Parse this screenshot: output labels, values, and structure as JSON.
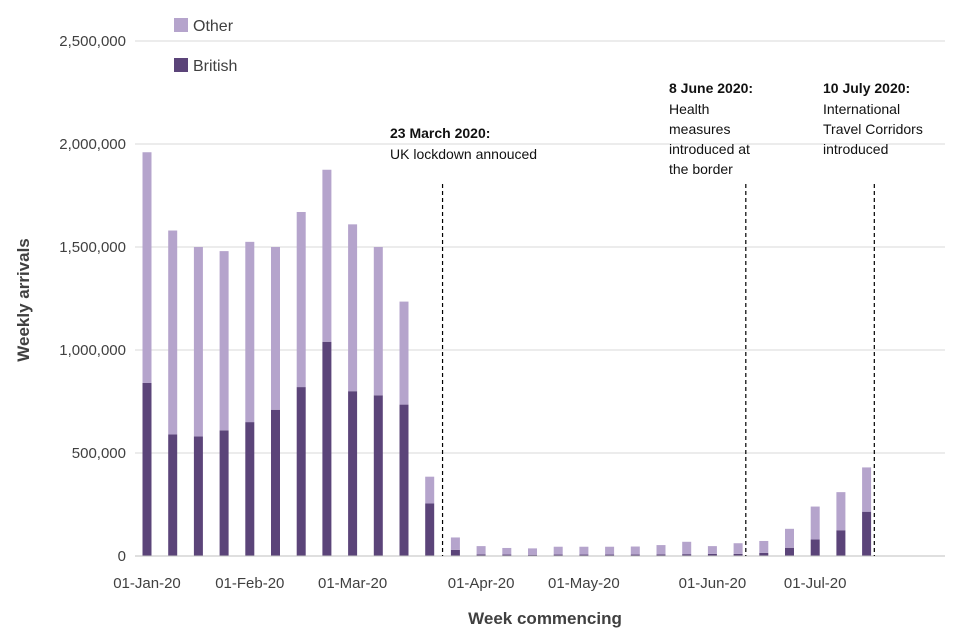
{
  "chart_data": {
    "type": "bar",
    "stacked": true,
    "xlabel": "Week commencing",
    "ylabel": "Weekly arrivals",
    "ylim": [
      0,
      2500000
    ],
    "y_ticks": [
      "0",
      "500,000",
      "1,000,000",
      "1,500,000",
      "2,000,000",
      "2,500,000"
    ],
    "grid": true,
    "legend_position": "top-left",
    "x_tick_labels": [
      {
        "label": "01-Jan-20",
        "week": 0
      },
      {
        "label": "01-Feb-20",
        "week": 4
      },
      {
        "label": "01-Mar-20",
        "week": 8
      },
      {
        "label": "01-Apr-20",
        "week": 13
      },
      {
        "label": "01-May-20",
        "week": 17
      },
      {
        "label": "01-Jun-20",
        "week": 22
      },
      {
        "label": "01-Jul-20",
        "week": 26
      }
    ],
    "series": [
      {
        "name": "British",
        "color": "#5b4479",
        "values": [
          840000,
          590000,
          580000,
          610000,
          650000,
          710000,
          820000,
          1040000,
          800000,
          780000,
          735000,
          255000,
          30000,
          8000,
          7000,
          6000,
          7000,
          7000,
          7000,
          7000,
          8000,
          9000,
          10000,
          10000,
          15000,
          40000,
          80000,
          125000,
          215000
        ]
      },
      {
        "name": "Other",
        "color": "#b5a4cc",
        "values": [
          1120000,
          990000,
          920000,
          870000,
          875000,
          790000,
          850000,
          835000,
          810000,
          720000,
          500000,
          130000,
          60000,
          40000,
          32000,
          31000,
          38000,
          38000,
          38000,
          39000,
          45000,
          60000,
          38000,
          52000,
          58000,
          92000,
          160000,
          185000,
          215000
        ]
      }
    ],
    "annotations": [
      {
        "week": 11.5,
        "title": "23 March 2020:",
        "lines": [
          "UK lockdown annouced"
        ]
      },
      {
        "week": 23.3,
        "title": "8 June 2020:",
        "lines": [
          "Health",
          "measures",
          "introduced at",
          "the border"
        ]
      },
      {
        "week": 28.3,
        "title": "10 July 2020:",
        "lines": [
          "International",
          "Travel Corridors",
          "introduced"
        ]
      }
    ]
  }
}
